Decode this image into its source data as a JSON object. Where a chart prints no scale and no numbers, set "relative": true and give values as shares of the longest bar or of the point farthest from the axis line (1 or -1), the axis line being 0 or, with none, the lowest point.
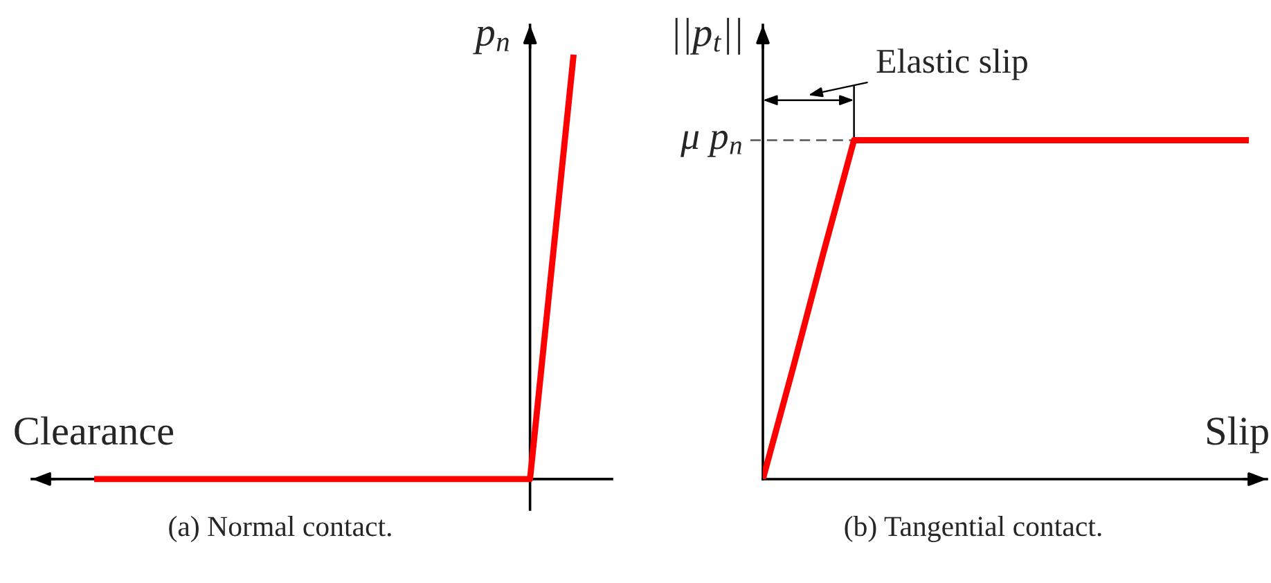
{
  "chart_data": [
    {
      "type": "line",
      "title": "(a) Normal contact.",
      "xlabel": "Clearance",
      "ylabel": "p$_{n}$",
      "relative": true,
      "categories": [
        null,
        null,
        null,
        null,
        null,
        null,
        null,
        null,
        null,
        null,
        null,
        null
      ],
      "series": [
        {
          "color": "#ff0000",
          "values": [
            0,
            0,
            0,
            0,
            0,
            0,
            0,
            0,
            0,
            0,
            0,
            1
          ]
        }
      ]
    },
    {
      "type": "line",
      "title": "(b) Tangential contact.",
      "xlabel": "Slip",
      "ylabel": "||p$_{t}$||",
      "relative": true,
      "categories": [
        null,
        null,
        null,
        null,
        null,
        null,
        null,
        null,
        null,
        null,
        null,
        null,
        null,
        null,
        null,
        null,
        null
      ],
      "series": [
        {
          "color": "#ff0000",
          "values": [
            0,
            0.33,
            0.67,
            1,
            1,
            1,
            1,
            1,
            1,
            1,
            1,
            1,
            1,
            1,
            1,
            1,
            1
          ]
        },
        {
          "name": "μ p$_{n}$",
          "color": "#555555",
          "line_style": "dashed",
          "values": [
            1,
            1,
            1,
            1,
            null,
            null,
            null,
            null,
            null,
            null,
            null,
            null,
            null,
            null,
            null,
            null,
            null
          ]
        }
      ],
      "annotations": [
        "Elastic slip"
      ]
    }
  ]
}
